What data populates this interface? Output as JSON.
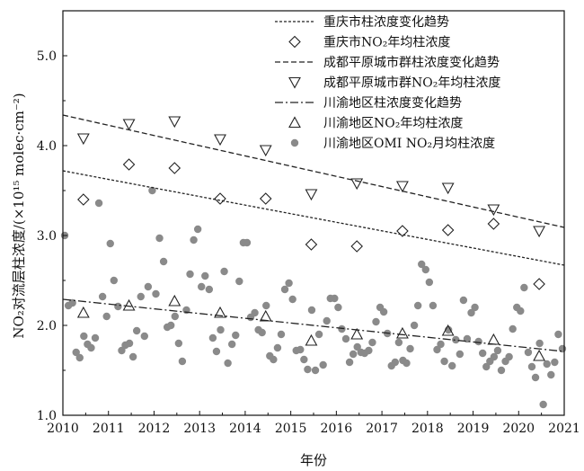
{
  "chart_data": {
    "type": "scatter",
    "xlabel": "年份",
    "ylabel": "NO₂对流层柱浓度/(×10¹⁵ molec·cm⁻²)",
    "xlim": [
      2010,
      2021
    ],
    "ylim": [
      1.0,
      5.5
    ],
    "xticks": [
      "2010",
      "2011",
      "2012",
      "2013",
      "2014",
      "2015",
      "2016",
      "2017",
      "2018",
      "2019",
      "2020",
      "2021"
    ],
    "yticks": [
      "1.0",
      "2.0",
      "3.0",
      "4.0",
      "5.0"
    ],
    "legend_position": "top-right",
    "series": [
      {
        "name": "重庆市柱浓度变化趋势",
        "style": "dotted-line",
        "x": [
          2010,
          2021
        ],
        "y": [
          3.72,
          2.67
        ]
      },
      {
        "name": "重庆市NO₂年均柱浓度",
        "style": "diamond-marker",
        "x": [
          2010.45,
          2011.45,
          2012.45,
          2013.45,
          2014.45,
          2015.45,
          2016.45,
          2017.45,
          2018.45,
          2019.45,
          2020.45
        ],
        "y": [
          3.4,
          3.79,
          3.75,
          3.41,
          3.41,
          2.9,
          2.88,
          3.05,
          3.06,
          3.13,
          2.46
        ]
      },
      {
        "name": "成都平原城市群柱浓度变化趋势",
        "style": "dashed-line",
        "x": [
          2010,
          2021
        ],
        "y": [
          4.34,
          3.09
        ]
      },
      {
        "name": "成都平原城市群NO₂年均柱浓度",
        "style": "down-triangle-marker",
        "x": [
          2010.45,
          2011.45,
          2012.45,
          2013.45,
          2014.45,
          2015.45,
          2016.45,
          2017.45,
          2018.45,
          2019.45,
          2020.45
        ],
        "y": [
          4.08,
          4.24,
          4.27,
          4.07,
          3.95,
          3.46,
          3.58,
          3.55,
          3.53,
          3.29,
          3.05
        ]
      },
      {
        "name": "川渝地区柱浓度变化趋势",
        "style": "dashdot-line",
        "x": [
          2010,
          2021
        ],
        "y": [
          2.29,
          1.71
        ]
      },
      {
        "name": "川渝地区NO₂年均柱浓度",
        "style": "up-triangle-marker",
        "x": [
          2010.45,
          2011.45,
          2012.45,
          2013.45,
          2014.45,
          2015.45,
          2016.45,
          2017.45,
          2018.45,
          2019.45,
          2020.45
        ],
        "y": [
          2.14,
          2.22,
          2.27,
          2.14,
          2.1,
          1.83,
          1.9,
          1.91,
          1.94,
          1.84,
          1.66
        ]
      },
      {
        "name": "川渝地区OMI NO₂月均柱浓度",
        "style": "filled-circle",
        "x": [
          2010.04,
          2010.12,
          2010.21,
          2010.29,
          2010.37,
          2010.46,
          2010.54,
          2010.62,
          2010.71,
          2010.79,
          2010.87,
          2010.96,
          2011.04,
          2011.12,
          2011.21,
          2011.29,
          2011.37,
          2011.46,
          2011.54,
          2011.62,
          2011.71,
          2011.79,
          2011.87,
          2011.96,
          2012.04,
          2012.12,
          2012.21,
          2012.29,
          2012.37,
          2012.46,
          2012.54,
          2012.62,
          2012.71,
          2012.79,
          2012.87,
          2012.96,
          2013.04,
          2013.12,
          2013.21,
          2013.29,
          2013.37,
          2013.46,
          2013.54,
          2013.62,
          2013.71,
          2013.79,
          2013.87,
          2013.96,
          2014.04,
          2014.12,
          2014.21,
          2014.29,
          2014.37,
          2014.46,
          2014.54,
          2014.62,
          2014.71,
          2014.79,
          2014.87,
          2014.96,
          2015.04,
          2015.12,
          2015.21,
          2015.29,
          2015.37,
          2015.46,
          2015.54,
          2015.62,
          2015.71,
          2015.79,
          2015.87,
          2015.96,
          2016.04,
          2016.12,
          2016.21,
          2016.29,
          2016.37,
          2016.46,
          2016.54,
          2016.62,
          2016.71,
          2016.79,
          2016.87,
          2016.96,
          2017.04,
          2017.12,
          2017.21,
          2017.29,
          2017.37,
          2017.46,
          2017.54,
          2017.62,
          2017.71,
          2017.79,
          2017.87,
          2017.96,
          2018.04,
          2018.12,
          2018.21,
          2018.29,
          2018.37,
          2018.46,
          2018.54,
          2018.62,
          2018.71,
          2018.79,
          2018.87,
          2018.96,
          2019.04,
          2019.12,
          2019.21,
          2019.29,
          2019.37,
          2019.46,
          2019.54,
          2019.62,
          2019.71,
          2019.79,
          2019.87,
          2019.96,
          2020.04,
          2020.12,
          2020.21,
          2020.29,
          2020.37,
          2020.46,
          2020.54,
          2020.62,
          2020.71,
          2020.79,
          2020.87,
          2020.96
        ],
        "y": [
          3.0,
          2.22,
          2.25,
          1.7,
          1.64,
          1.88,
          1.79,
          1.75,
          1.86,
          3.36,
          2.32,
          2.1,
          2.91,
          2.5,
          2.21,
          1.72,
          1.78,
          1.8,
          1.65,
          1.94,
          2.32,
          1.88,
          2.43,
          3.5,
          2.35,
          2.97,
          2.71,
          1.98,
          2.0,
          2.1,
          1.8,
          1.6,
          2.17,
          2.57,
          2.95,
          3.07,
          2.43,
          2.55,
          2.4,
          1.86,
          1.71,
          1.95,
          2.6,
          1.58,
          1.79,
          1.89,
          2.49,
          2.92,
          2.92,
          2.09,
          2.14,
          1.95,
          1.92,
          2.22,
          1.66,
          1.62,
          1.75,
          1.9,
          2.4,
          2.47,
          2.29,
          1.72,
          1.73,
          1.62,
          1.51,
          2.17,
          1.5,
          1.9,
          1.56,
          2.05,
          2.3,
          2.3,
          2.2,
          1.96,
          1.85,
          1.59,
          1.68,
          1.76,
          1.7,
          1.69,
          1.72,
          1.81,
          2.04,
          2.2,
          2.15,
          1.91,
          1.55,
          1.59,
          1.81,
          1.61,
          1.58,
          1.74,
          2.0,
          2.22,
          2.68,
          2.62,
          2.48,
          2.22,
          1.73,
          1.79,
          1.6,
          1.95,
          1.55,
          1.84,
          1.68,
          2.28,
          1.85,
          2.14,
          2.2,
          1.82,
          1.69,
          1.54,
          1.6,
          1.65,
          1.72,
          1.5,
          1.6,
          1.65,
          1.96,
          2.2,
          2.16,
          2.42,
          1.7,
          1.54,
          1.42,
          1.8,
          1.12,
          1.57,
          1.45,
          1.59,
          1.9,
          1.74
        ]
      }
    ]
  }
}
